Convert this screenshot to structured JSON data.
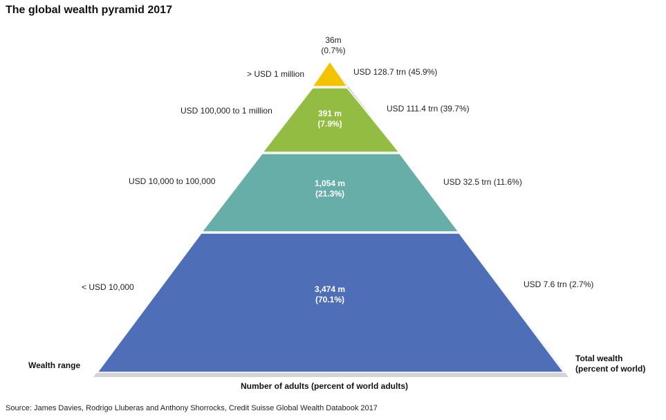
{
  "title": "The global wealth pyramid 2017",
  "colors": {
    "tier1": "#f2c400",
    "tier2": "#92bc42",
    "tier3": "#68aea8",
    "tier4": "#4e6fb8",
    "shadow": "#d4d4d4"
  },
  "tiers": [
    {
      "wealth_range": "> USD 1 million",
      "adults": "36m",
      "adults_pct": "(0.7%)",
      "total_wealth": "USD 128.7 trn (45.9%)"
    },
    {
      "wealth_range": "USD 100,000  to 1 million",
      "adults": "391 m",
      "adults_pct": "(7.9%)",
      "total_wealth": "USD 111.4 trn (39.7%)"
    },
    {
      "wealth_range": "USD 10,000  to 100,000",
      "adults": "1,054 m",
      "adults_pct": "(21.3%)",
      "total_wealth": "USD 32.5 trn (11.6%)"
    },
    {
      "wealth_range": "<  USD 10,000",
      "adults": "3,474 m",
      "adults_pct": "(70.1%)",
      "total_wealth": "USD 7.6 trn (2.7%)"
    }
  ],
  "axis": {
    "left": "Wealth range",
    "bottom": "Number of adults (percent of world adults)",
    "right_line1": "Total wealth",
    "right_line2": "(percent of world)"
  },
  "source": "Source: James Davies, Rodrigo Lluberas and Anthony Shorrocks, Credit Suisse Global Wealth Databook 2017"
}
